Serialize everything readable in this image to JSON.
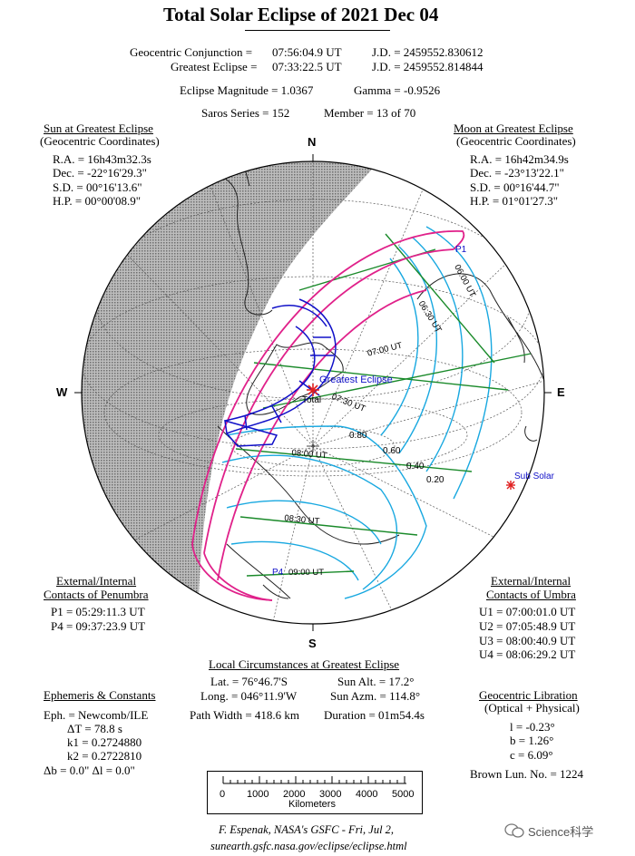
{
  "header": {
    "title": "Total Solar Eclipse of  2021 Dec 04",
    "conj_label": "Geocentric Conjunction =",
    "conj_time": "07:56:04.9 UT",
    "conj_jd": "J.D. = 2459552.830612",
    "ge_label": "Greatest Eclipse =",
    "ge_time": "07:33:22.5 UT",
    "ge_jd": "J.D. = 2459552.814844",
    "mag": "Eclipse Magnitude = 1.0367",
    "gamma": "Gamma = -0.9526",
    "saros": "Saros Series = 152",
    "member": "Member = 13 of 70"
  },
  "sun": {
    "title": "Sun at Greatest Eclipse",
    "subtitle": "(Geocentric Coordinates)",
    "ra": "R.A. = 16h43m32.3s",
    "dec": "Dec. = -22°16'29.3\"",
    "sd": "S.D. = 00°16'13.6\"",
    "hp": "H.P. = 00°00'08.9\""
  },
  "moon": {
    "title": "Moon at Greatest Eclipse",
    "subtitle": "(Geocentric Coordinates)",
    "ra": "R.A. = 16h42m34.9s",
    "dec": "Dec. = -23°13'22.1\"",
    "sd": "S.D. = 00°16'44.7\"",
    "hp": "H.P. = 01°01'27.3\""
  },
  "map": {
    "north": "N",
    "south": "S",
    "west": "W",
    "east": "E",
    "greatest": "Greatest Eclipse",
    "total": "Total",
    "subsolar": "Sub Solar",
    "p1": "P1",
    "p4": "P4",
    "times": [
      "06:00 UT",
      "06:30 UT",
      "07:00 UT",
      "07:30 UT",
      "08:00 UT",
      "08:30 UT",
      "09:00 UT"
    ],
    "mags": [
      "0.80",
      "0.60",
      "0.40",
      "0.20"
    ],
    "colors": {
      "penumbra": "#e0218a",
      "umbra": "#1010c8",
      "isomag": "#18a8e0",
      "time": "#1a8a2a",
      "night": "#999999"
    }
  },
  "penumbra": {
    "title1": "External/Internal",
    "title2": "Contacts of Penumbra",
    "p1": "P1 = 05:29:11.3 UT",
    "p4": "P4 = 09:37:23.9 UT"
  },
  "umbra": {
    "title1": "External/Internal",
    "title2": "Contacts of Umbra",
    "u1": "U1 = 07:00:01.0 UT",
    "u2": "U2 = 07:05:48.9 UT",
    "u3": "U3 = 08:00:40.9 UT",
    "u4": "U4 = 08:06:29.2 UT"
  },
  "local": {
    "title": "Local Circumstances at Greatest Eclipse",
    "lat": "Lat. =  76°46.7'S",
    "long": "Long. = 046°11.9'W",
    "alt": "Sun Alt. =  17.2°",
    "azm": "Sun Azm. = 114.8°",
    "width": "Path Width = 418.6 km",
    "duration": "Duration =  01m54.4s"
  },
  "ephem": {
    "title": "Ephemeris & Constants",
    "eph": "Eph. = Newcomb/ILE",
    "dt": "ΔT =    78.8 s",
    "k1": "k1 = 0.2724880",
    "k2": "k2 = 0.2722810",
    "db": "Δb =  0.0\"    Δl =  0.0\""
  },
  "libration": {
    "title": "Geocentric Libration",
    "subtitle": "(Optical + Physical)",
    "l": "l =  -0.23°",
    "b": "b =   1.26°",
    "c": "c =   6.09°",
    "brown": "Brown Lun. No. = 1224"
  },
  "scale": {
    "ticks": [
      "0",
      "1000",
      "2000",
      "3000",
      "4000",
      "5000"
    ],
    "unit": "Kilometers"
  },
  "footer": {
    "credit": "F. Espenak, NASA's GSFC - Fri, Jul 2,",
    "url": "sunearth.gsfc.nasa.gov/eclipse/eclipse.html",
    "watermark": "Science科学"
  }
}
